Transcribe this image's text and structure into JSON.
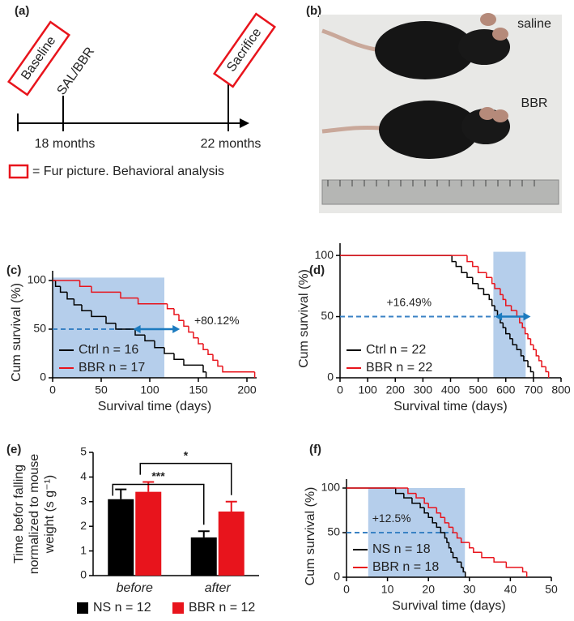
{
  "panel_labels": [
    "(a)",
    "(b)",
    "(c)",
    "(d)",
    "(e)",
    "(f)"
  ],
  "timeline": {
    "events": [
      "Baseline",
      "SAL/BBR",
      "Sacrifice"
    ],
    "time_labels": [
      "18 months",
      "22 months"
    ],
    "legend": "= Fur picture. Behavioral analysis"
  },
  "photo": {
    "labels": [
      "saline",
      "BBR"
    ]
  },
  "chart_data": [
    {
      "type": "step",
      "x_label": "Survival time (days)",
      "y_label": "Cum survival (%)",
      "xlim": [
        0,
        210
      ],
      "ylim": [
        0,
        110
      ],
      "xticks": [
        0,
        50,
        100,
        150,
        200
      ],
      "yticks": [
        0,
        50,
        100
      ],
      "legend": "lower left",
      "shaded_region": {
        "x": [
          0,
          115
        ],
        "y": [
          0,
          103
        ],
        "color": "#a8c6e8"
      },
      "reference_line": {
        "y": 50,
        "x": [
          0,
          90
        ],
        "color": "#3a82c4"
      },
      "arrow": {
        "x": [
          83,
          131
        ],
        "y": 50,
        "color": "#1c7bbf"
      },
      "annotation": {
        "text": "+80.12%",
        "x": 169,
        "y": 58
      },
      "series": [
        {
          "name": "Ctrl n = 16",
          "color": "#000000",
          "x": [
            0,
            3,
            8,
            15,
            22,
            30,
            40,
            55,
            65,
            85,
            95,
            105,
            115,
            125,
            135,
            155,
            158
          ],
          "values": [
            100,
            94,
            88,
            81,
            75,
            69,
            63,
            56,
            50,
            44,
            38,
            31,
            25,
            19,
            13,
            6,
            0
          ]
        },
        {
          "name": "BBR n = 17",
          "color": "#e8141c",
          "x": [
            0,
            28,
            40,
            70,
            88,
            118,
            125,
            130,
            135,
            140,
            145,
            150,
            155,
            160,
            165,
            170,
            175,
            208
          ],
          "values": [
            100,
            94,
            88,
            82,
            76,
            71,
            65,
            59,
            53,
            47,
            41,
            35,
            29,
            24,
            18,
            12,
            6,
            0
          ]
        }
      ]
    },
    {
      "type": "step",
      "x_label": "Survival time (days)",
      "y_label": "Cum survival (%)",
      "xlim": [
        0,
        800
      ],
      "ylim": [
        0,
        110
      ],
      "xticks": [
        0,
        100,
        200,
        300,
        400,
        500,
        600,
        700,
        800
      ],
      "yticks": [
        0,
        50,
        100
      ],
      "legend": "lower left",
      "shaded_region": {
        "x": [
          555,
          672
        ],
        "y": [
          0,
          103
        ],
        "color": "#a8c6e8"
      },
      "reference_line": {
        "y": 50,
        "x": [
          0,
          560
        ],
        "color": "#3a82c4"
      },
      "arrow": {
        "x": [
          560,
          690
        ],
        "y": 50,
        "color": "#1c7bbf"
      },
      "annotation": {
        "text": "+16.49%",
        "x": 250,
        "y": 61
      },
      "series": [
        {
          "name": "Ctrl n = 22",
          "color": "#000000",
          "x": [
            0,
            405,
            420,
            440,
            460,
            480,
            500,
            520,
            540,
            550,
            560,
            570,
            580,
            590,
            600,
            615,
            625,
            640,
            655,
            665,
            680,
            690,
            700
          ],
          "values": [
            100,
            95,
            91,
            86,
            82,
            77,
            73,
            68,
            64,
            59,
            55,
            50,
            45,
            41,
            36,
            32,
            27,
            23,
            18,
            14,
            9,
            5,
            0
          ]
        },
        {
          "name": "BBR n = 22",
          "color": "#e8141c",
          "x": [
            0,
            460,
            480,
            500,
            530,
            550,
            560,
            580,
            590,
            600,
            620,
            640,
            650,
            660,
            670,
            680,
            690,
            700,
            710,
            720,
            730,
            745,
            755
          ],
          "values": [
            100,
            95,
            91,
            86,
            82,
            77,
            73,
            68,
            64,
            59,
            55,
            50,
            45,
            41,
            36,
            32,
            27,
            23,
            18,
            14,
            9,
            5,
            0
          ]
        }
      ]
    },
    {
      "type": "bar",
      "y_label": [
        "Time befor falling",
        "normalized to mouse",
        "weight (s g⁻¹)"
      ],
      "categories": [
        "before",
        "after"
      ],
      "ylim": [
        0,
        5
      ],
      "yticks": [
        0,
        1,
        2,
        3,
        4,
        5
      ],
      "legend": "bottom",
      "series": [
        {
          "name": "NS n = 12",
          "color": "#000000",
          "values": [
            3.1,
            1.55
          ],
          "errors": [
            0.4,
            0.25
          ]
        },
        {
          "name": "BBR n = 12",
          "color": "#e8141c",
          "values": [
            3.4,
            2.6
          ],
          "errors": [
            0.4,
            0.4
          ]
        }
      ],
      "significance": [
        {
          "label": "***",
          "y": 3.7
        },
        {
          "label": "*",
          "y": 4.55
        }
      ]
    },
    {
      "type": "step",
      "x_label": "Survival time (days)",
      "y_label": "Cum survival (%)",
      "xlim": [
        0,
        50
      ],
      "ylim": [
        0,
        110
      ],
      "xticks": [
        0,
        10,
        20,
        30,
        40,
        50
      ],
      "yticks": [
        0,
        50,
        100
      ],
      "legend": "lower left",
      "shaded_region": {
        "x": [
          5.3,
          28.9
        ],
        "y": [
          0,
          100
        ],
        "color": "#a8c6e8"
      },
      "reference_line": {
        "y": 50,
        "x": [
          0,
          26
        ],
        "color": "#3a82c4"
      },
      "annotation": {
        "text": "+12.5%",
        "x": 11,
        "y": 65
      },
      "series": [
        {
          "name": "NS n = 18",
          "color": "#000000",
          "x": [
            0,
            12,
            14,
            16,
            18,
            19,
            20,
            21,
            22,
            23,
            24,
            24.5,
            25,
            25.5,
            26,
            27,
            28,
            28.5,
            29
          ],
          "values": [
            100,
            94,
            89,
            83,
            78,
            72,
            67,
            61,
            56,
            50,
            44,
            39,
            33,
            28,
            22,
            17,
            11,
            6,
            0
          ]
        },
        {
          "name": "BBR n = 18",
          "color": "#e8141c",
          "x": [
            0,
            15,
            17,
            19,
            20,
            22,
            23,
            24,
            25,
            26,
            27,
            28,
            30,
            31,
            33,
            36,
            39,
            43,
            44
          ],
          "values": [
            100,
            94,
            89,
            83,
            78,
            72,
            67,
            61,
            56,
            50,
            44,
            39,
            33,
            28,
            22,
            17,
            11,
            6,
            0
          ]
        }
      ]
    }
  ]
}
